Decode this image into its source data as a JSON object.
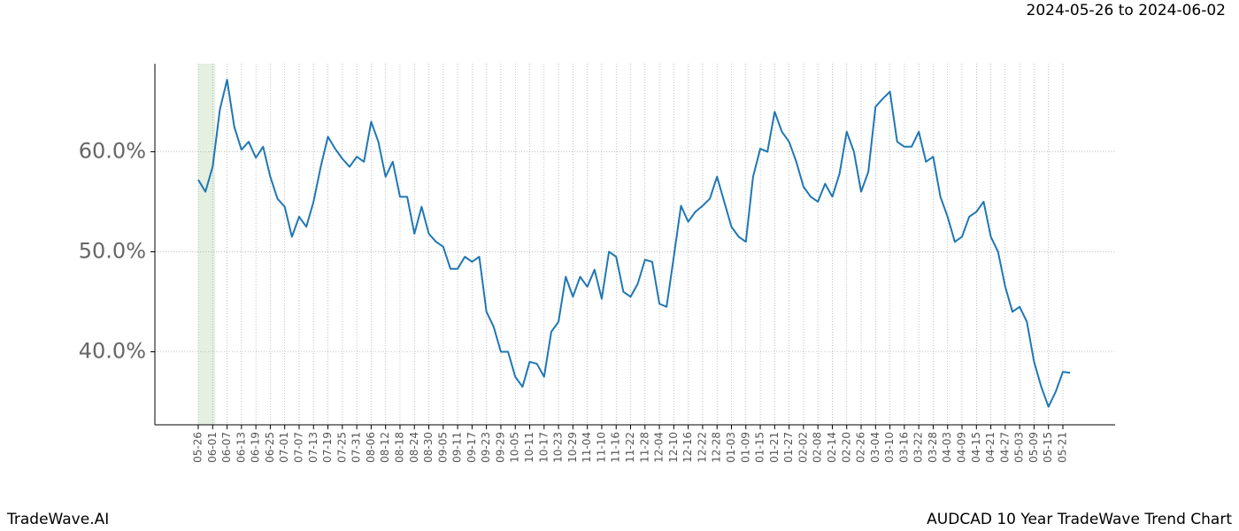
{
  "chart_data": {
    "type": "line",
    "title": "AUDCAD 10 Year TradeWave Trend Chart",
    "subtitle": "2024-05-26 to 2024-06-02",
    "brand": "TradeWave.AI",
    "categories": [
      "05-26",
      null,
      "06-01",
      null,
      "06-07",
      null,
      "06-13",
      null,
      "06-19",
      null,
      "06-25",
      null,
      "07-01",
      null,
      "07-07",
      null,
      "07-13",
      null,
      "07-19",
      null,
      "07-25",
      null,
      "07-31",
      null,
      "08-06",
      null,
      "08-12",
      null,
      "08-18",
      null,
      "08-24",
      null,
      "08-30",
      null,
      "09-05",
      null,
      "09-11",
      null,
      "09-17",
      null,
      "09-23",
      null,
      "09-29",
      null,
      "10-05",
      null,
      "10-11",
      null,
      "10-17",
      null,
      "10-23",
      null,
      "10-29",
      null,
      "11-04",
      null,
      "11-10",
      null,
      "11-16",
      null,
      "11-22",
      null,
      "11-28",
      null,
      "12-04",
      null,
      "12-10",
      null,
      "12-16",
      null,
      "12-22",
      null,
      "12-28",
      null,
      "01-03",
      null,
      "01-09",
      null,
      "01-15",
      null,
      "01-21",
      null,
      "01-27",
      null,
      "02-02",
      null,
      "02-08",
      null,
      "02-14",
      null,
      "02-20",
      null,
      "02-26",
      null,
      "03-04",
      null,
      "03-10",
      null,
      "03-16",
      null,
      "03-22",
      null,
      "03-28",
      null,
      "04-03",
      null,
      "04-09",
      null,
      "04-15",
      null,
      "04-21",
      null,
      "04-27",
      null,
      "05-03",
      null,
      "05-09",
      null,
      "05-15",
      null,
      "05-21",
      null
    ],
    "values": [
      57.2,
      56.0,
      58.5,
      64.2,
      67.2,
      62.5,
      60.2,
      61.0,
      59.4,
      60.5,
      57.5,
      55.3,
      54.5,
      51.5,
      53.5,
      52.5,
      55.0,
      58.5,
      61.5,
      60.3,
      59.3,
      58.5,
      59.5,
      59.0,
      63.0,
      61.0,
      57.5,
      59.0,
      55.5,
      55.5,
      51.8,
      54.5,
      51.8,
      51.0,
      50.5,
      48.3,
      48.3,
      49.5,
      49.0,
      49.5,
      44.0,
      42.5,
      40.0,
      40.0,
      37.5,
      36.5,
      39.0,
      38.8,
      37.5,
      42.0,
      43.0,
      47.5,
      45.5,
      47.5,
      46.5,
      48.2,
      45.3,
      50.0,
      49.5,
      46.0,
      45.5,
      46.8,
      49.2,
      49.0,
      44.8,
      44.5,
      49.5,
      54.6,
      53.0,
      54.0,
      54.6,
      55.3,
      57.5,
      55.0,
      52.5,
      51.5,
      51.0,
      57.5,
      60.3,
      60.0,
      64.0,
      62.0,
      61.0,
      59.0,
      56.5,
      55.5,
      55.0,
      56.8,
      55.5,
      57.8,
      62.0,
      60.0,
      56.0,
      58.0,
      64.5,
      65.3,
      66.0,
      61.0,
      60.5,
      60.5,
      62.0,
      59.0,
      59.5,
      55.5,
      53.5,
      51.0,
      51.5,
      53.5,
      54.0,
      55.0,
      51.5,
      50.0,
      46.5,
      44.0,
      44.5,
      43.0,
      39.0,
      36.5,
      34.5,
      36.0,
      38.0,
      37.9
    ],
    "color": "#1f77b4",
    "ylim": [
      32.7,
      68.8
    ],
    "yticks": [
      {
        "value": 40,
        "label": "40.0%"
      },
      {
        "value": 50,
        "label": "50.0%"
      },
      {
        "value": 60,
        "label": "60.0%"
      }
    ],
    "grid": true
  }
}
